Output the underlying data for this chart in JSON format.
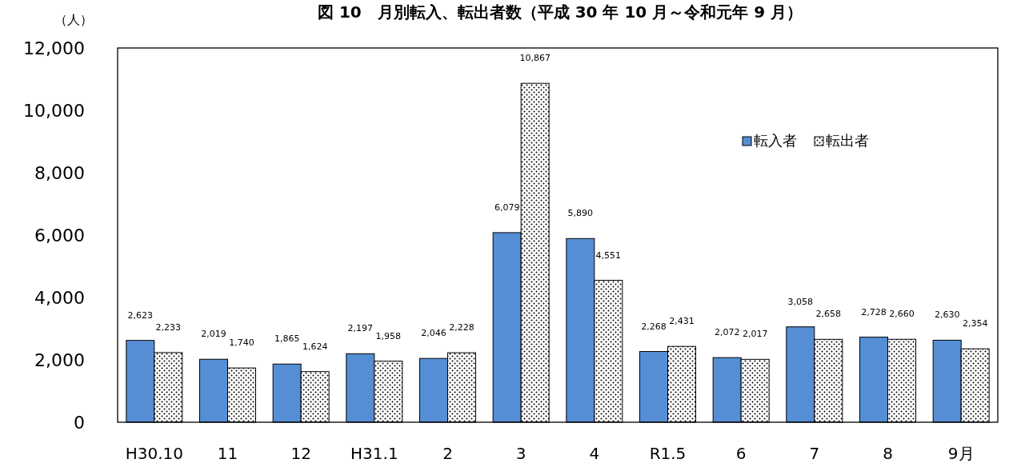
{
  "chart_data": {
    "type": "bar",
    "title": "図 10　月別転入、転出者数（平成 30 年 10 月～令和元年 9 月）",
    "ylabel": "（人）",
    "categories": [
      "H30.10",
      "11",
      "12",
      "H31.1",
      "2",
      "3",
      "4",
      "R1.5",
      "6",
      "7",
      "8",
      "9月"
    ],
    "series": [
      {
        "name": "転入者",
        "color": "#558ed5",
        "values": [
          2623,
          2019,
          1865,
          2197,
          2046,
          6079,
          5890,
          2268,
          2072,
          3058,
          2728,
          2630
        ],
        "value_labels": [
          "2,623",
          "2,019",
          "1,865",
          "2,197",
          "2,046",
          "6,079",
          "5,890",
          "2,268",
          "2,072",
          "3,058",
          "2,728",
          "2,630"
        ]
      },
      {
        "name": "転出者",
        "color": "#000000",
        "values": [
          2233,
          1740,
          1624,
          1958,
          2228,
          10867,
          4551,
          2431,
          2017,
          2658,
          2660,
          2354
        ],
        "value_labels": [
          "2,233",
          "1,740",
          "1,624",
          "1,958",
          "2,228",
          "10,867",
          "4,551",
          "2,431",
          "2,017",
          "2,658",
          "2,660",
          "2,354"
        ]
      }
    ],
    "ylim": [
      0,
      12000
    ],
    "yticks": [
      0,
      {
        "value": 2000,
        "label": "2,000"
      },
      {
        "value": 4000,
        "label": "4,000"
      },
      {
        "value": 6000,
        "label": "6,000"
      },
      {
        "value": 8000,
        "label": "8,000"
      },
      {
        "value": 10000,
        "label": "10,000"
      },
      {
        "value": 12000,
        "label": "12,000"
      }
    ],
    "grid": false,
    "legend": "top right"
  }
}
